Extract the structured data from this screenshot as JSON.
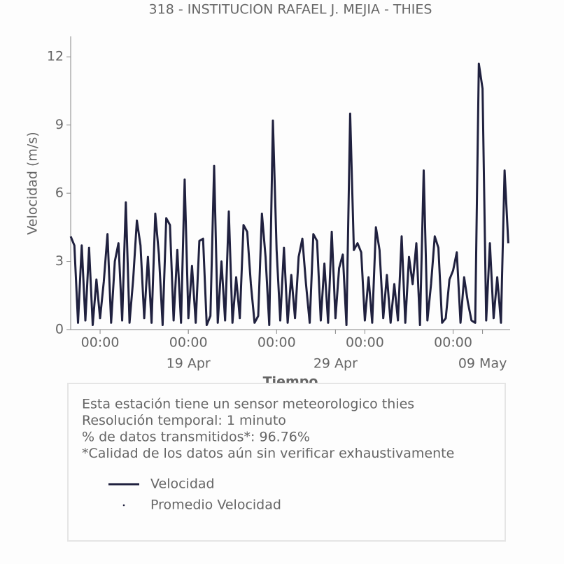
{
  "chart_data": {
    "type": "line",
    "title": "318 - INSTITUCION RAFAEL J. MEJIA - THIES",
    "x_label": "Tiempo",
    "y_label": "Velocidad (m/s)",
    "x": [
      "11 Apr 00:00",
      "11 Apr 06:00",
      "11 Apr 12:00",
      "11 Apr 18:00",
      "12 Apr 00:00",
      "12 Apr 06:00",
      "12 Apr 12:00",
      "12 Apr 18:00",
      "13 Apr 00:00",
      "13 Apr 06:00",
      "13 Apr 12:00",
      "13 Apr 18:00",
      "14 Apr 00:00",
      "14 Apr 06:00",
      "14 Apr 12:00",
      "14 Apr 18:00",
      "15 Apr 00:00",
      "15 Apr 06:00",
      "15 Apr 12:00",
      "15 Apr 18:00",
      "16 Apr 00:00",
      "16 Apr 06:00",
      "16 Apr 12:00",
      "16 Apr 18:00",
      "17 Apr 00:00",
      "17 Apr 06:00",
      "17 Apr 12:00",
      "17 Apr 18:00",
      "18 Apr 00:00",
      "18 Apr 06:00",
      "18 Apr 12:00",
      "18 Apr 18:00",
      "19 Apr 00:00",
      "19 Apr 06:00",
      "19 Apr 12:00",
      "19 Apr 18:00",
      "20 Apr 00:00",
      "20 Apr 06:00",
      "20 Apr 12:00",
      "20 Apr 18:00",
      "21 Apr 00:00",
      "21 Apr 06:00",
      "21 Apr 12:00",
      "21 Apr 18:00",
      "22 Apr 00:00",
      "22 Apr 06:00",
      "22 Apr 12:00",
      "22 Apr 18:00",
      "23 Apr 00:00",
      "23 Apr 06:00",
      "23 Apr 12:00",
      "23 Apr 18:00",
      "24 Apr 00:00",
      "24 Apr 06:00",
      "24 Apr 12:00",
      "24 Apr 18:00",
      "25 Apr 00:00",
      "25 Apr 06:00",
      "25 Apr 12:00",
      "25 Apr 18:00",
      "26 Apr 00:00",
      "26 Apr 06:00",
      "26 Apr 12:00",
      "26 Apr 18:00",
      "27 Apr 00:00",
      "27 Apr 06:00",
      "27 Apr 12:00",
      "27 Apr 18:00",
      "28 Apr 00:00",
      "28 Apr 06:00",
      "28 Apr 12:00",
      "28 Apr 18:00",
      "29 Apr 00:00",
      "29 Apr 06:00",
      "29 Apr 12:00",
      "29 Apr 18:00",
      "30 Apr 00:00",
      "30 Apr 06:00",
      "30 Apr 12:00",
      "30 Apr 18:00",
      "01 May 00:00",
      "01 May 06:00",
      "01 May 12:00",
      "01 May 18:00",
      "02 May 00:00",
      "02 May 06:00",
      "02 May 12:00",
      "02 May 18:00",
      "03 May 00:00",
      "03 May 06:00",
      "03 May 12:00",
      "03 May 18:00",
      "04 May 00:00",
      "04 May 06:00",
      "04 May 12:00",
      "04 May 18:00",
      "05 May 00:00",
      "05 May 06:00",
      "05 May 12:00",
      "05 May 18:00",
      "06 May 00:00",
      "06 May 06:00",
      "06 May 12:00",
      "06 May 18:00",
      "07 May 00:00",
      "07 May 06:00",
      "07 May 12:00",
      "07 May 18:00",
      "08 May 00:00",
      "08 May 06:00",
      "08 May 12:00",
      "08 May 18:00",
      "09 May 00:00",
      "09 May 06:00",
      "09 May 12:00",
      "09 May 18:00",
      "10 May 00:00",
      "10 May 06:00",
      "10 May 12:00",
      "10 May 18:00"
    ],
    "series": [
      {
        "name": "Velocidad",
        "color": "#20213f",
        "values": [
          4.1,
          3.7,
          0.3,
          3.7,
          0.4,
          3.6,
          0.2,
          2.2,
          0.5,
          2.1,
          4.2,
          0.3,
          3.0,
          3.8,
          0.4,
          5.6,
          0.3,
          2.2,
          4.8,
          3.7,
          0.5,
          3.2,
          0.3,
          5.1,
          3.3,
          0.2,
          4.9,
          4.6,
          0.4,
          3.5,
          0.3,
          6.6,
          0.5,
          2.8,
          0.3,
          3.9,
          4.0,
          0.2,
          0.6,
          7.2,
          0.3,
          3.0,
          0.4,
          5.2,
          0.3,
          2.3,
          0.5,
          4.6,
          4.3,
          2.0,
          0.3,
          0.6,
          5.1,
          3.2,
          0.2,
          9.2,
          3.5,
          0.4,
          3.6,
          0.3,
          2.4,
          0.5,
          3.2,
          4.0,
          2.0,
          0.3,
          4.2,
          3.9,
          0.4,
          2.9,
          0.3,
          4.3,
          0.5,
          2.7,
          3.3,
          0.2,
          9.5,
          3.5,
          3.8,
          3.4,
          0.4,
          2.3,
          0.3,
          4.5,
          3.5,
          0.5,
          2.4,
          0.3,
          2.0,
          0.4,
          4.1,
          0.3,
          3.2,
          2.0,
          3.8,
          0.2,
          7.0,
          0.4,
          2.0,
          4.1,
          3.6,
          0.3,
          0.5,
          2.2,
          2.6,
          3.4,
          0.3,
          2.3,
          1.2,
          0.4,
          0.3,
          11.7,
          10.6,
          0.4,
          3.8,
          0.5,
          2.3,
          0.3,
          7.0,
          3.8
        ]
      },
      {
        "name": "Promedio Velocidad",
        "color": "#20213f",
        "marker": "point"
      }
    ],
    "xlim": [
      "11 Apr 00:00",
      "10 May 21:00"
    ],
    "xticks": [
      {
        "value": "13 Apr 00:00",
        "label": "00:00"
      },
      {
        "value": "19 Apr 00:00",
        "label": "00:00"
      },
      {
        "value": "25 Apr 00:00",
        "label": "00:00"
      },
      {
        "value": "01 May 00:00",
        "label": "00:00"
      },
      {
        "value": "07 May 00:00",
        "label": "00:00"
      }
    ],
    "xticks_dates": [
      {
        "value": "19 Apr 00:00",
        "label": "19 Apr"
      },
      {
        "value": "29 Apr 00:00",
        "label": "29 Apr"
      },
      {
        "value": "09 May 00:00",
        "label": "09 May"
      }
    ],
    "ylim": [
      0,
      12.9
    ],
    "yticks": [
      0,
      3,
      6,
      9,
      12
    ],
    "notes": [
      "Esta estación tiene un sensor meteorologico thies",
      "Resolución temporal: 1 minuto",
      "% de datos transmitidos*: 96.76%",
      "*Calidad de los datos aún sin verificar exhaustivamente"
    ]
  }
}
